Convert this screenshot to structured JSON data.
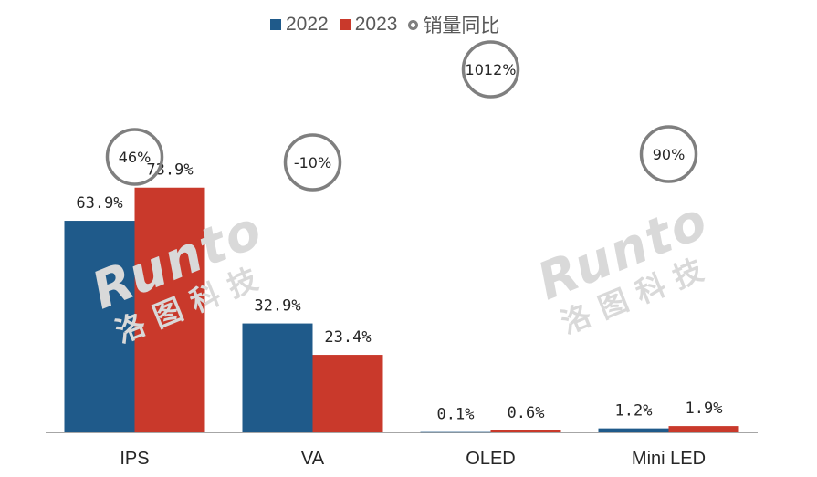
{
  "legend": {
    "series_2022": "2022",
    "series_2023": "2023",
    "yoy_label": "销量同比"
  },
  "watermark": {
    "brand": "Runto",
    "brand_cn": "洛图科技"
  },
  "colors": {
    "s2022": "#1f5a8a",
    "s2023": "#c9392b",
    "ring": "#7f7f7f",
    "text": "#262626",
    "axis": "#a6a6a6"
  },
  "chart_data": {
    "type": "bar",
    "title": "",
    "xlabel": "",
    "ylabel": "",
    "categories": [
      "IPS",
      "VA",
      "OLED",
      "Mini LED"
    ],
    "series": [
      {
        "name": "2022",
        "values": [
          63.9,
          32.9,
          0.1,
          1.2
        ],
        "labels": [
          "63.9%",
          "32.9%",
          "0.1%",
          "1.2%"
        ]
      },
      {
        "name": "2023",
        "values": [
          73.9,
          23.4,
          0.6,
          1.9
        ],
        "labels": [
          "73.9%",
          "23.4%",
          "0.6%",
          "1.9%"
        ]
      }
    ],
    "yoy": {
      "name": "销量同比",
      "labels": [
        "46%",
        "-10%",
        "1012%",
        "90%"
      ]
    },
    "ylim": [
      0,
      100
    ],
    "grid": false,
    "legend_position": "top-center"
  }
}
